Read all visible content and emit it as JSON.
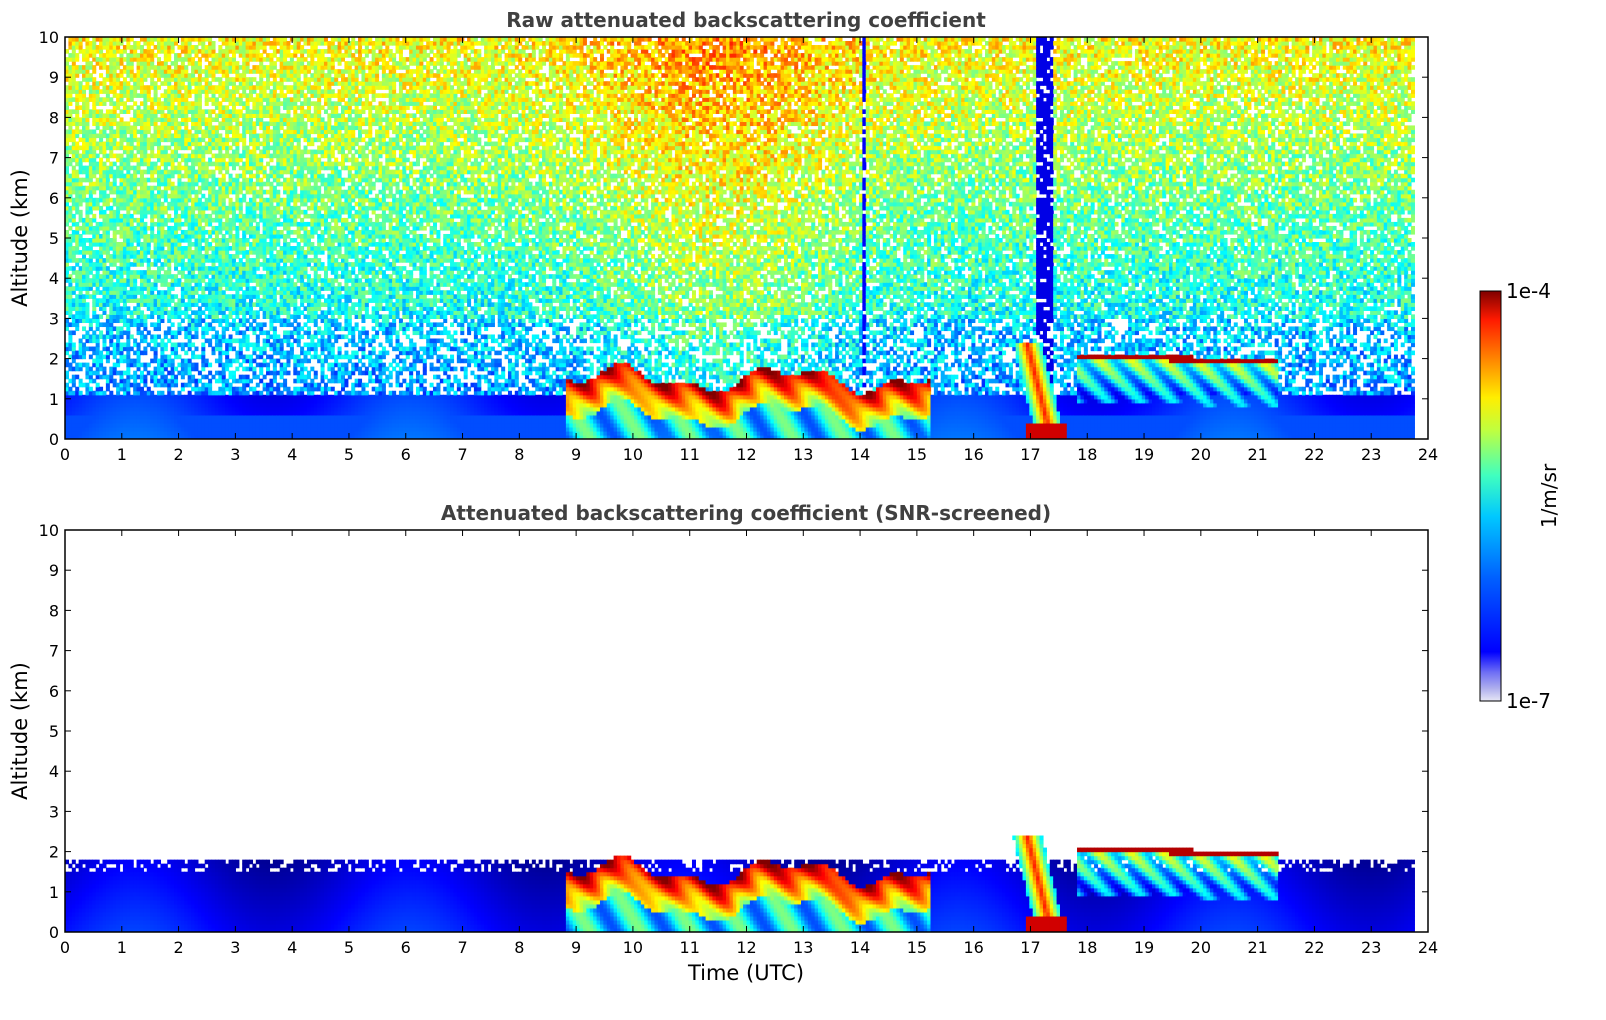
{
  "chart_data": [
    {
      "type": "heatmap",
      "title": "Raw attenuated backscattering coefficient",
      "xlabel": "",
      "ylabel": "Altitude (km)",
      "xlim": [
        0,
        24
      ],
      "ylim": [
        0,
        10
      ],
      "xticks": [
        0,
        1,
        2,
        3,
        4,
        5,
        6,
        7,
        8,
        9,
        10,
        11,
        12,
        13,
        14,
        15,
        16,
        17,
        18,
        19,
        20,
        21,
        22,
        23,
        24
      ],
      "yticks": [
        0,
        1,
        2,
        3,
        4,
        5,
        6,
        7,
        8,
        9,
        10
      ],
      "data_end_time": 23.7,
      "colormap": "jet",
      "color_scale": "log",
      "features": [
        {
          "name": "boundary layer",
          "time_range": [
            0,
            23.7
          ],
          "altitude_top_km": 1.0
        },
        {
          "name": "cloud layer",
          "time_range": [
            8.8,
            15.2
          ],
          "altitude_km": [
            0.0,
            1.8
          ]
        },
        {
          "name": "cloud layer",
          "time_range": [
            16.4,
            17.8
          ],
          "altitude_km": [
            0.0,
            2.4
          ]
        },
        {
          "name": "elevated layer",
          "time_range": [
            17.8,
            21.3
          ],
          "altitude_km": [
            0.8,
            2.2
          ]
        },
        {
          "name": "background noise",
          "time_range": [
            0,
            23.7
          ],
          "altitude_km": [
            1.0,
            10.0
          ]
        }
      ]
    },
    {
      "type": "heatmap",
      "title": "Attenuated backscattering coefficient (SNR-screened)",
      "xlabel": "Time (UTC)",
      "ylabel": "Altitude (km)",
      "xlim": [
        0,
        24
      ],
      "ylim": [
        0,
        10
      ],
      "xticks": [
        0,
        1,
        2,
        3,
        4,
        5,
        6,
        7,
        8,
        9,
        10,
        11,
        12,
        13,
        14,
        15,
        16,
        17,
        18,
        19,
        20,
        21,
        22,
        23,
        24
      ],
      "yticks": [
        0,
        1,
        2,
        3,
        4,
        5,
        6,
        7,
        8,
        9,
        10
      ],
      "data_end_time": 23.7,
      "colormap": "jet",
      "color_scale": "log",
      "features": [
        {
          "name": "boundary layer",
          "time_range": [
            0,
            23.7
          ],
          "altitude_top_km": 1.8
        },
        {
          "name": "cloud layer",
          "time_range": [
            8.8,
            15.2
          ],
          "altitude_km": [
            0.0,
            1.8
          ]
        },
        {
          "name": "cloud layer",
          "time_range": [
            16.4,
            17.8
          ],
          "altitude_km": [
            0.0,
            2.4
          ]
        },
        {
          "name": "elevated layer",
          "time_range": [
            17.8,
            21.3
          ],
          "altitude_km": [
            0.8,
            2.2
          ]
        }
      ]
    }
  ],
  "colorbar": {
    "label": "1/m/sr",
    "max_label": "1e-4",
    "min_label": "1e-7",
    "colors": [
      "#00007f",
      "#0000ff",
      "#007fff",
      "#00ffff",
      "#7fff7f",
      "#ffff00",
      "#ff7f00",
      "#ff0000",
      "#7f0000"
    ]
  }
}
